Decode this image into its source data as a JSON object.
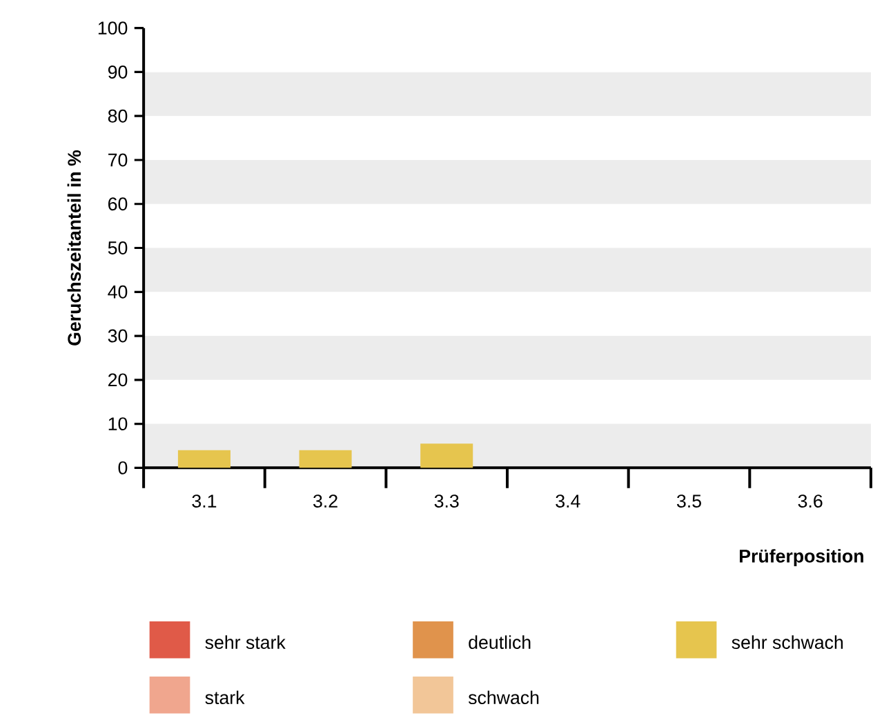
{
  "chart_data": {
    "type": "bar",
    "stacked": true,
    "xlabel": "Prüferposition",
    "ylabel": "Geruchszeitanteil in %",
    "categories": [
      "3.1",
      "3.2",
      "3.3",
      "3.4",
      "3.5",
      "3.6"
    ],
    "series": [
      {
        "name": "sehr stark",
        "color": "#e05a48",
        "values": [
          0,
          0,
          0,
          0,
          0,
          0
        ]
      },
      {
        "name": "stark",
        "color": "#f0a68e",
        "values": [
          0,
          0,
          0,
          0,
          0,
          0
        ]
      },
      {
        "name": "deutlich",
        "color": "#e0934c",
        "values": [
          0,
          0,
          0,
          0,
          0,
          0
        ]
      },
      {
        "name": "schwach",
        "color": "#f2c698",
        "values": [
          0,
          0,
          0,
          0,
          0,
          0
        ]
      },
      {
        "name": "sehr schwach",
        "color": "#e6c54e",
        "values": [
          4,
          4,
          5.5,
          0,
          0,
          0
        ]
      }
    ],
    "ylim": [
      0,
      100
    ],
    "yticks": [
      0,
      10,
      20,
      30,
      40,
      50,
      60,
      70,
      80,
      90,
      100
    ],
    "bands": [
      {
        "axis": "y",
        "from": 0,
        "to": 10,
        "color": "#ececec"
      },
      {
        "axis": "y",
        "from": 20,
        "to": 30,
        "color": "#ececec"
      },
      {
        "axis": "y",
        "from": 40,
        "to": 50,
        "color": "#ececec"
      },
      {
        "axis": "y",
        "from": 60,
        "to": 70,
        "color": "#ececec"
      },
      {
        "axis": "y",
        "from": 80,
        "to": 90,
        "color": "#ececec"
      }
    ],
    "legend": "bottom"
  }
}
